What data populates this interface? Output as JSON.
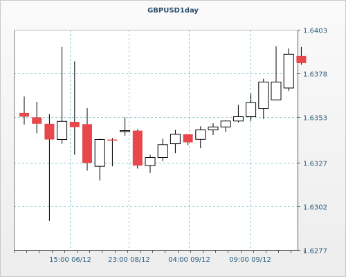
{
  "chart_data": {
    "type": "candlestick",
    "title": "GBPUSD1day",
    "yticks": [
      "1.6403",
      "1.6378",
      "1.6353",
      "1.6327",
      "1.6302",
      "1.6277"
    ],
    "ytick_values": [
      1.6403,
      1.6378,
      1.6353,
      1.6327,
      1.6302,
      1.6277
    ],
    "ylim": [
      1.6277,
      1.6403
    ],
    "xticks": [
      {
        "label": "15:00 06/12",
        "index": 3.6
      },
      {
        "label": "23:00 08/12",
        "index": 8.3
      },
      {
        "label": "04:00 09/12",
        "index": 13.1
      },
      {
        "label": "09:00 09/12",
        "index": 17.9
      }
    ],
    "grid": true,
    "colors": {
      "bear": "#e8474b",
      "bull": "#ffffff",
      "outline": "#000000",
      "grid": "#8fc7cf",
      "axis_text": "#2a5f7e"
    },
    "candles": [
      {
        "open": 1.63555,
        "high": 1.63648,
        "low": 1.63488,
        "close": 1.63533
      },
      {
        "open": 1.63529,
        "high": 1.63618,
        "low": 1.63438,
        "close": 1.63492
      },
      {
        "open": 1.63492,
        "high": 1.63547,
        "low": 1.62937,
        "close": 1.63402
      },
      {
        "open": 1.63402,
        "high": 1.63932,
        "low": 1.63377,
        "close": 1.63506
      },
      {
        "open": 1.63503,
        "high": 1.63849,
        "low": 1.63315,
        "close": 1.63473
      },
      {
        "open": 1.6349,
        "high": 1.63582,
        "low": 1.63224,
        "close": 1.63268
      },
      {
        "open": 1.63249,
        "high": 1.63407,
        "low": 1.63168,
        "close": 1.63402
      },
      {
        "open": 1.63402,
        "high": 1.63411,
        "low": 1.63249,
        "close": 1.63397
      },
      {
        "open": 1.63453,
        "high": 1.63529,
        "low": 1.63424,
        "close": 1.63453
      },
      {
        "open": 1.63453,
        "high": 1.63461,
        "low": 1.63236,
        "close": 1.63253
      },
      {
        "open": 1.63253,
        "high": 1.63315,
        "low": 1.63211,
        "close": 1.63299
      },
      {
        "open": 1.63299,
        "high": 1.63406,
        "low": 1.63278,
        "close": 1.63373
      },
      {
        "open": 1.63378,
        "high": 1.63457,
        "low": 1.63324,
        "close": 1.63432
      },
      {
        "open": 1.63432,
        "high": 1.63432,
        "low": 1.63369,
        "close": 1.63386
      },
      {
        "open": 1.63403,
        "high": 1.63478,
        "low": 1.63352,
        "close": 1.63457
      },
      {
        "open": 1.63457,
        "high": 1.63495,
        "low": 1.63428,
        "close": 1.63474
      },
      {
        "open": 1.63474,
        "high": 1.63512,
        "low": 1.63444,
        "close": 1.63508
      },
      {
        "open": 1.63508,
        "high": 1.636,
        "low": 1.635,
        "close": 1.63533
      },
      {
        "open": 1.63533,
        "high": 1.63665,
        "low": 1.63508,
        "close": 1.63613
      },
      {
        "open": 1.6358,
        "high": 1.6375,
        "low": 1.6352,
        "close": 1.63731
      },
      {
        "open": 1.63629,
        "high": 1.63936,
        "low": 1.63629,
        "close": 1.63731
      },
      {
        "open": 1.63697,
        "high": 1.63924,
        "low": 1.6368,
        "close": 1.6389
      },
      {
        "open": 1.6388,
        "high": 1.63932,
        "low": 1.6383,
        "close": 1.6384
      }
    ]
  }
}
